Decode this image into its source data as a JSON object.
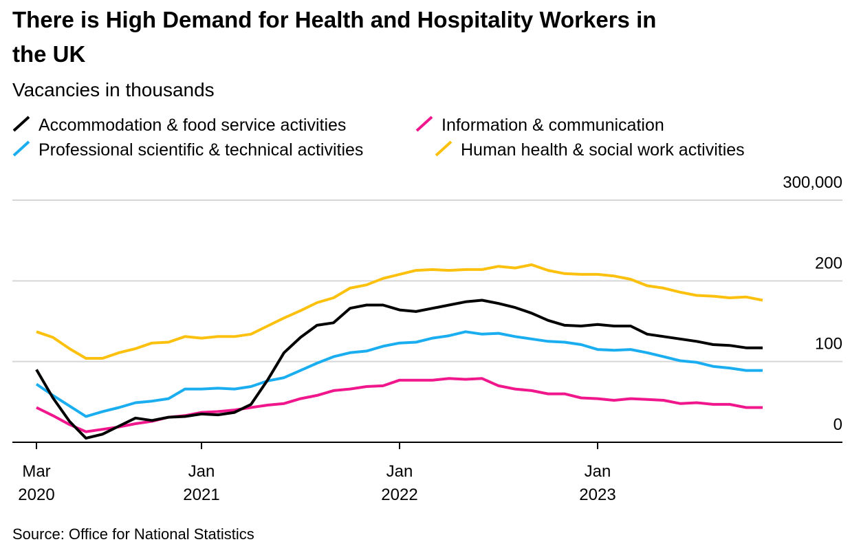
{
  "chart_data": {
    "type": "line",
    "title": "There is High Demand for Health and Hospitality Workers in the UK",
    "subtitle": "Vacancies in thousands",
    "source": "Source: Office for National Statistics",
    "x": [
      "2020-03",
      "2020-04",
      "2020-05",
      "2020-06",
      "2020-07",
      "2020-08",
      "2020-09",
      "2020-10",
      "2020-11",
      "2020-12",
      "2021-01",
      "2021-02",
      "2021-03",
      "2021-04",
      "2021-05",
      "2021-06",
      "2021-07",
      "2021-08",
      "2021-09",
      "2021-10",
      "2021-11",
      "2021-12",
      "2022-01",
      "2022-02",
      "2022-03",
      "2022-04",
      "2022-05",
      "2022-06",
      "2022-07",
      "2022-08",
      "2022-09",
      "2022-10",
      "2022-11",
      "2022-12",
      "2023-01",
      "2023-02",
      "2023-03",
      "2023-04",
      "2023-05",
      "2023-06",
      "2023-07",
      "2023-08",
      "2023-09",
      "2023-10",
      "2023-11"
    ],
    "series": [
      {
        "name": "Accommodation & food service activities",
        "color": "#000000",
        "values": [
          90,
          55,
          26,
          5,
          10,
          20,
          30,
          27,
          31,
          32,
          35,
          34,
          37,
          47,
          77,
          111,
          130,
          145,
          148,
          166,
          170,
          170,
          164,
          162,
          166,
          170,
          174,
          176,
          172,
          167,
          160,
          151,
          145,
          144,
          146,
          144,
          144,
          134,
          131,
          128,
          125,
          121,
          120,
          117,
          117
        ]
      },
      {
        "name": "Information & communication",
        "color": "#f0168c",
        "values": [
          43,
          33,
          22,
          13,
          16,
          19,
          23,
          26,
          31,
          33,
          37,
          38,
          40,
          43,
          46,
          48,
          54,
          58,
          64,
          66,
          69,
          70,
          77,
          77,
          77,
          79,
          78,
          79,
          70,
          66,
          64,
          60,
          60,
          55,
          54,
          52,
          54,
          53,
          52,
          48,
          49,
          47,
          47,
          43,
          43
        ]
      },
      {
        "name": "Professional scientific & technical activities",
        "color": "#1aaef0",
        "values": [
          72,
          58,
          45,
          32,
          38,
          43,
          49,
          51,
          54,
          66,
          66,
          67,
          66,
          69,
          76,
          80,
          89,
          98,
          106,
          111,
          113,
          119,
          123,
          124,
          129,
          132,
          137,
          134,
          135,
          131,
          128,
          125,
          124,
          121,
          115,
          114,
          115,
          111,
          106,
          101,
          99,
          94,
          92,
          89,
          89
        ]
      },
      {
        "name": "Human health & social work activities",
        "color": "#fcc10f",
        "values": [
          137,
          130,
          116,
          104,
          104,
          111,
          116,
          123,
          124,
          131,
          129,
          131,
          131,
          134,
          144,
          154,
          163,
          173,
          179,
          191,
          195,
          203,
          208,
          213,
          214,
          213,
          214,
          214,
          218,
          216,
          220,
          213,
          209,
          208,
          208,
          206,
          202,
          194,
          191,
          186,
          182,
          181,
          179,
          180,
          176
        ]
      }
    ],
    "ylim": [
      0,
      300
    ],
    "yticks": [
      0,
      100,
      200,
      {
        "value": 300,
        "label": "300,000"
      }
    ],
    "xticks": [
      {
        "value": "2020-03",
        "label": "Mar",
        "year": "2020"
      },
      {
        "value": "2021-01",
        "label": "Jan",
        "year": "2021"
      },
      {
        "value": "2022-01",
        "label": "Jan",
        "year": "2022"
      },
      {
        "value": "2023-01",
        "label": "Jan",
        "year": "2023"
      }
    ],
    "grid": true
  }
}
